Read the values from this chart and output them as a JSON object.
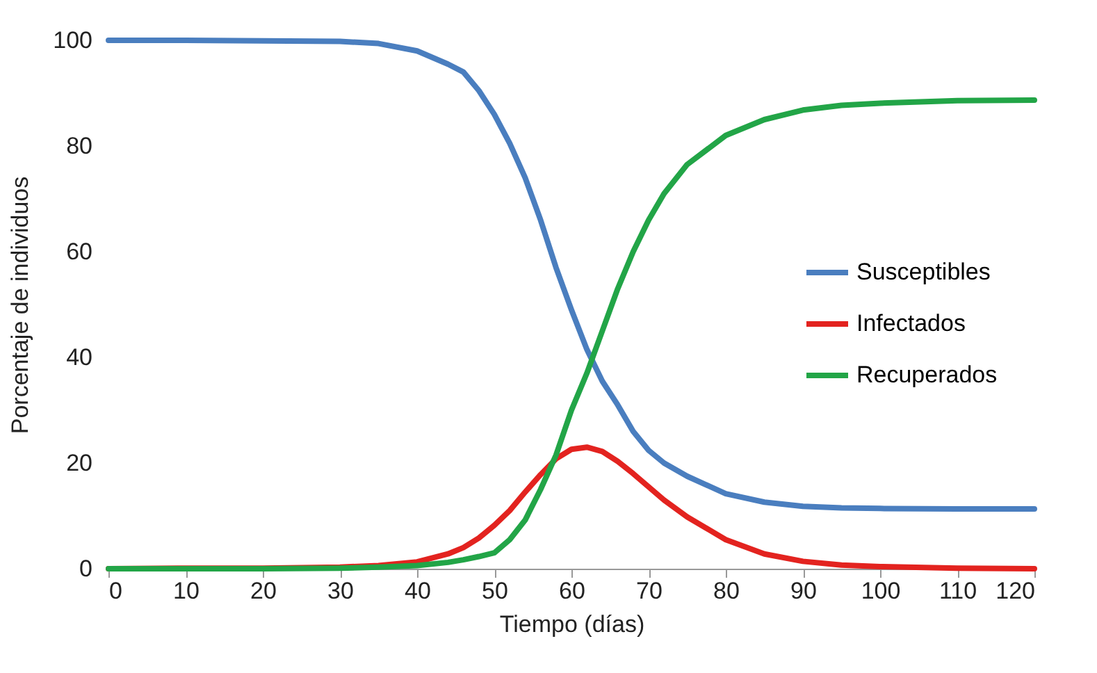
{
  "chart_data": {
    "type": "line",
    "xlabel": "Tiempo (días)",
    "ylabel": "Porcentaje de individuos",
    "x": [
      0,
      10,
      20,
      30,
      35,
      40,
      44,
      46,
      48,
      50,
      52,
      54,
      56,
      58,
      60,
      62,
      64,
      66,
      68,
      70,
      72,
      75,
      80,
      85,
      90,
      95,
      100,
      110,
      120
    ],
    "series": [
      {
        "name": "Susceptibles",
        "color": "#4a7ebf",
        "values": [
          100,
          100,
          99.9,
          99.8,
          99.4,
          98,
          95.5,
          94,
          90.5,
          86,
          80.5,
          74,
          66,
          57,
          49,
          41.5,
          35.5,
          31,
          26,
          22.4,
          20,
          17.5,
          14.2,
          12.6,
          11.8,
          11.5,
          11.4,
          11.3,
          11.3
        ]
      },
      {
        "name": "Infectados",
        "color": "#e3231f",
        "values": [
          0,
          0.1,
          0.1,
          0.3,
          0.6,
          1.3,
          2.8,
          4,
          5.8,
          8.2,
          11,
          14.5,
          17.8,
          20.8,
          22.6,
          23,
          22.2,
          20.3,
          18,
          15.5,
          13,
          9.8,
          5.5,
          2.8,
          1.4,
          0.7,
          0.4,
          0.1,
          0
        ]
      },
      {
        "name": "Recuperados",
        "color": "#22a547",
        "values": [
          0,
          0,
          0,
          0.1,
          0.3,
          0.6,
          1.2,
          1.7,
          2.3,
          3,
          5.5,
          9.2,
          15,
          21.5,
          30,
          37,
          45,
          53,
          60,
          66,
          71,
          76.5,
          82,
          85,
          86.8,
          87.7,
          88.1,
          88.6,
          88.7
        ]
      }
    ],
    "xlim": [
      0,
      120
    ],
    "xticks": [
      0,
      10,
      20,
      30,
      40,
      50,
      60,
      70,
      80,
      90,
      100,
      110,
      120
    ],
    "ylim": [
      0,
      100
    ],
    "yticks": [
      0,
      20,
      40,
      60,
      80,
      100
    ],
    "legend": "right",
    "grid": false,
    "marker": "none",
    "line_style": "solid"
  }
}
